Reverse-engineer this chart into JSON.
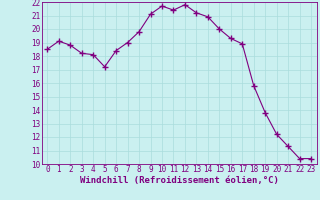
{
  "x": [
    0,
    1,
    2,
    3,
    4,
    5,
    6,
    7,
    8,
    9,
    10,
    11,
    12,
    13,
    14,
    15,
    16,
    17,
    18,
    19,
    20,
    21,
    22,
    23
  ],
  "y": [
    18.5,
    19.1,
    18.8,
    18.2,
    18.1,
    17.2,
    18.4,
    19.0,
    19.8,
    21.1,
    21.7,
    21.4,
    21.8,
    21.2,
    20.9,
    20.0,
    19.3,
    18.9,
    15.8,
    13.8,
    12.2,
    11.3,
    10.4,
    10.4
  ],
  "line_color": "#800080",
  "marker": "+",
  "marker_size": 4,
  "marker_lw": 1.0,
  "line_width": 0.8,
  "bg_color": "#caf0f0",
  "grid_color": "#aadddd",
  "xlabel": "Windchill (Refroidissement éolien,°C)",
  "xlim": [
    -0.5,
    23.5
  ],
  "ylim": [
    10,
    22
  ],
  "yticks": [
    10,
    11,
    12,
    13,
    14,
    15,
    16,
    17,
    18,
    19,
    20,
    21,
    22
  ],
  "xticks": [
    0,
    1,
    2,
    3,
    4,
    5,
    6,
    7,
    8,
    9,
    10,
    11,
    12,
    13,
    14,
    15,
    16,
    17,
    18,
    19,
    20,
    21,
    22,
    23
  ],
  "tick_color": "#800080",
  "label_color": "#800080",
  "spine_color": "#800080",
  "tick_fontsize": 5.5,
  "xlabel_fontsize": 6.5
}
